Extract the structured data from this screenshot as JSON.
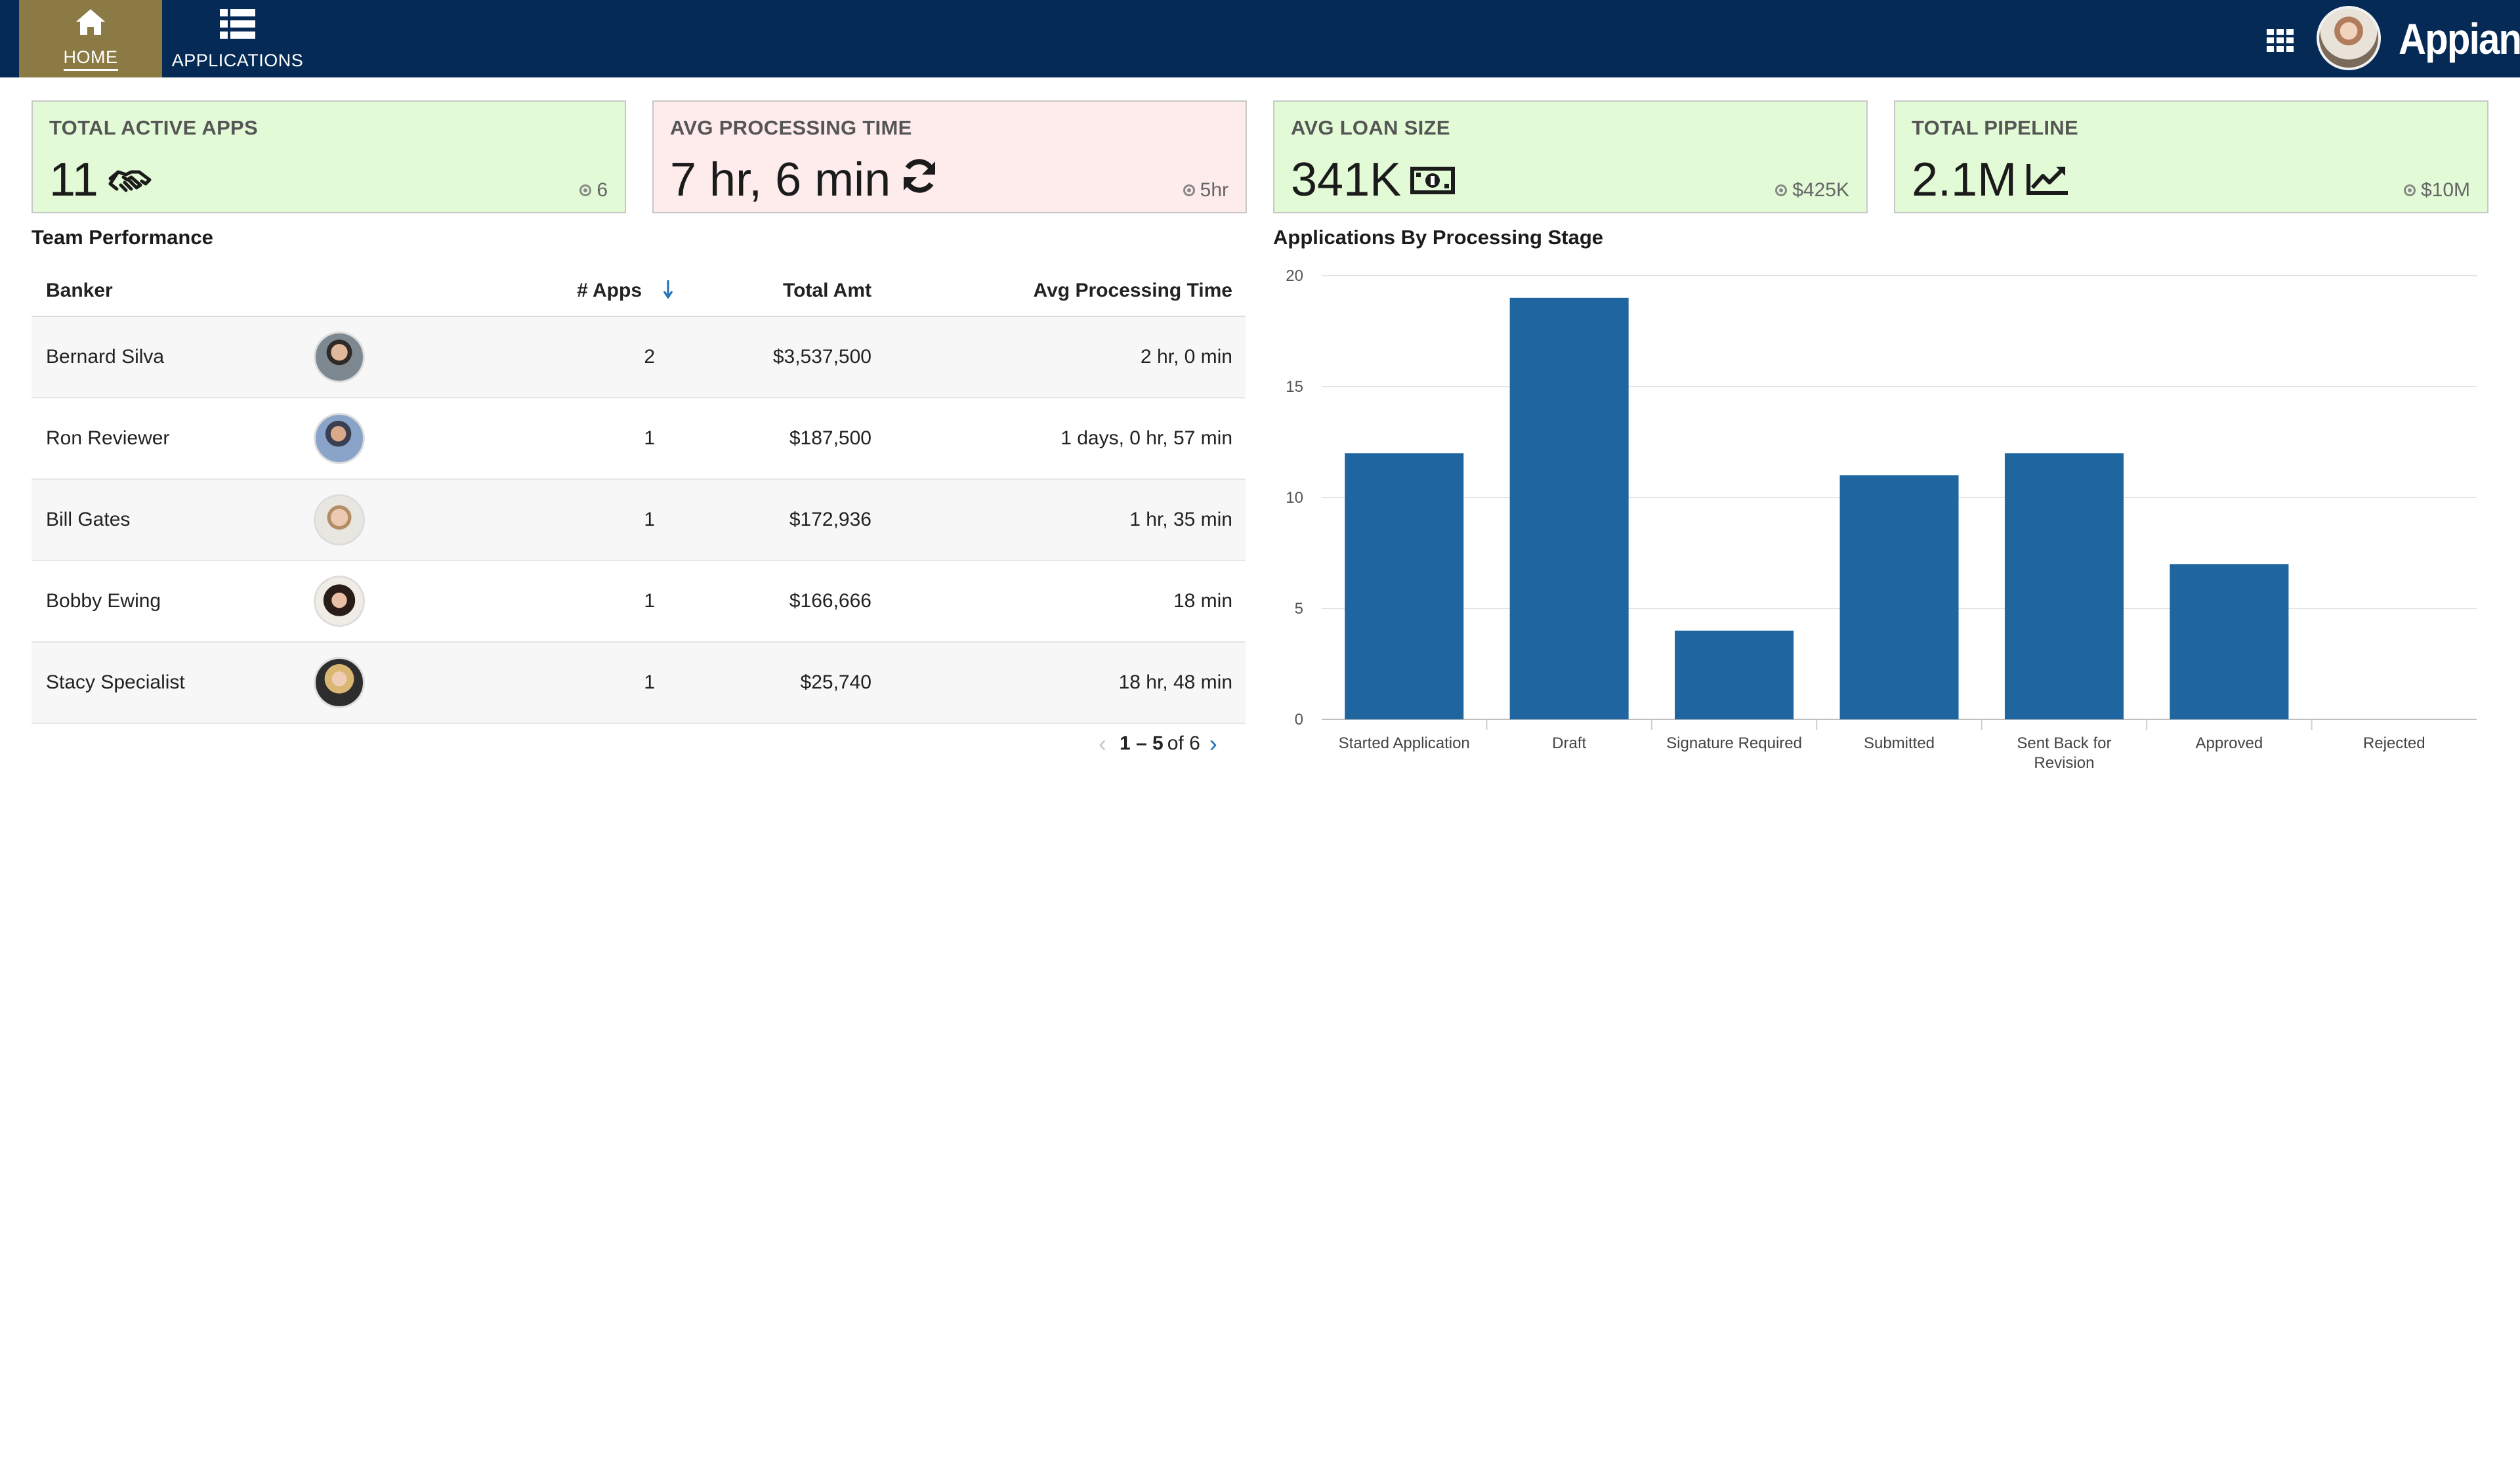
{
  "nav": {
    "home_label": "HOME",
    "applications_label": "APPLICATIONS",
    "brand": "Appian",
    "active_tab": "home"
  },
  "kpis": [
    {
      "title": "TOTAL ACTIVE APPS",
      "value": "11",
      "icon": "handshake-icon",
      "target": "6",
      "status": "good"
    },
    {
      "title": "AVG PROCESSING TIME",
      "value": "7 hr, 6 min",
      "icon": "refresh-icon",
      "target": "5hr",
      "status": "bad"
    },
    {
      "title": "AVG LOAN SIZE",
      "value": "341K",
      "icon": "money-icon",
      "target": "$425K",
      "status": "good"
    },
    {
      "title": "TOTAL PIPELINE",
      "value": "2.1M",
      "icon": "line-chart-icon",
      "target": "$10M",
      "status": "good"
    }
  ],
  "colors": {
    "nav_bg": "#042a55",
    "active_tab_bg": "#8c7a45",
    "card_good_bg": "#e2fbd6",
    "card_bad_bg": "#fdeceb",
    "bar": "#1f659f",
    "link": "#1b6fb8"
  },
  "team_performance": {
    "title": "Team Performance",
    "columns": {
      "banker": "Banker",
      "apps": "# Apps",
      "amount": "Total Amt",
      "time": "Avg Processing Time"
    },
    "sort_icon": "sort-down-arrow-icon",
    "rows": [
      {
        "banker": "Bernard Silva",
        "apps": "2",
        "amount": "$3,537,500",
        "time": "2 hr, 0 min"
      },
      {
        "banker": "Ron Reviewer",
        "apps": "1",
        "amount": "$187,500",
        "time": "1 days, 0 hr, 57 min"
      },
      {
        "banker": "Bill Gates",
        "apps": "1",
        "amount": "$172,936",
        "time": "1 hr, 35 min"
      },
      {
        "banker": "Bobby Ewing",
        "apps": "1",
        "amount": "$166,666",
        "time": "18 min"
      },
      {
        "banker": "Stacy Specialist",
        "apps": "1",
        "amount": "$25,740",
        "time": "18 hr, 48 min"
      }
    ],
    "pager": {
      "range": "1 – 5",
      "of_text": "of 6"
    }
  },
  "chart_data": {
    "type": "bar",
    "title": "Applications By Processing Stage",
    "xlabel": "",
    "ylabel": "",
    "categories": [
      "Started Application",
      "Draft",
      "Signature Required",
      "Submitted",
      "Sent Back for Revision",
      "Approved",
      "Rejected"
    ],
    "values": [
      12,
      19,
      4,
      11,
      12,
      7,
      0
    ],
    "ylim": [
      0,
      20
    ],
    "yticks": [
      0,
      5,
      10,
      15,
      20
    ],
    "grid": true,
    "legend": "none",
    "color": "#1f659f"
  }
}
